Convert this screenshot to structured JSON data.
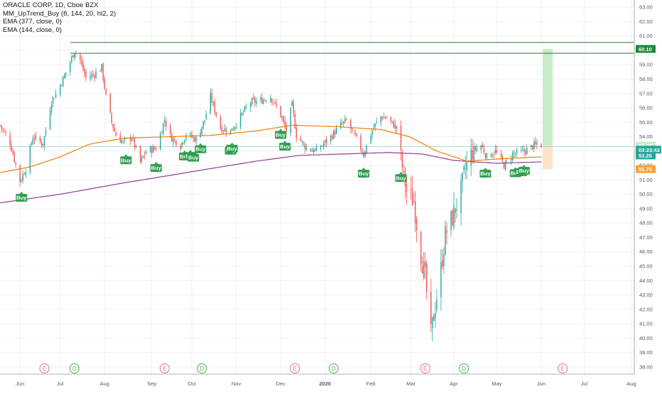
{
  "legend": {
    "symbol": "ORACLE CORP, 1D, Cboe BZX",
    "indicator": "MM_UpTrend_Buy (8, 144, 20, hl2, 2)",
    "ema_slow": "EMA (377, close, 0)",
    "ema_fast": "EMA (144, close, 0)"
  },
  "colors": {
    "up": "#26a69a",
    "down": "#ef5350",
    "ema_fast": "#f57c00",
    "ema_slow": "#8e3f8f",
    "buy": "#2e9e4f",
    "level_line": "#2e7d32",
    "profit_zone": "#c8ebcc",
    "loss_zone": "#fde3c8",
    "tag_green": "#1b8a3a",
    "tag_teal": "#26a69a",
    "tag_orange": "#f9a23b",
    "earnings": "#e57373",
    "dividend": "#4caf50"
  },
  "chart_data": {
    "type": "candlestick",
    "title": "ORACLE CORP, 1D, Cboe BZX",
    "ylim": [
      37.5,
      63.5
    ],
    "y_ticks": [
      "38.00",
      "39.00",
      "40.00",
      "41.00",
      "42.00",
      "43.00",
      "44.00",
      "45.00",
      "46.00",
      "47.00",
      "48.00",
      "49.00",
      "50.00",
      "51.00",
      "52.00",
      "53.00",
      "54.00",
      "55.00",
      "56.00",
      "57.00",
      "58.00",
      "59.00",
      "60.00",
      "61.00",
      "62.00",
      "63.00"
    ],
    "x_range": [
      "2019-05-20",
      "2020-08-05"
    ],
    "x_ticks": [
      {
        "label": "Jun",
        "date": "2019-06-03"
      },
      {
        "label": "Jul",
        "date": "2019-07-01"
      },
      {
        "label": "Aug",
        "date": "2019-08-01"
      },
      {
        "label": "Sep",
        "date": "2019-09-03"
      },
      {
        "label": "Oct",
        "date": "2019-10-01"
      },
      {
        "label": "Nov",
        "date": "2019-11-01"
      },
      {
        "label": "Dec",
        "date": "2019-12-02"
      },
      {
        "label": "2020",
        "date": "2020-01-02"
      },
      {
        "label": "Feb",
        "date": "2020-02-03"
      },
      {
        "label": "Mar",
        "date": "2020-03-02"
      },
      {
        "label": "Apr",
        "date": "2020-04-01"
      },
      {
        "label": "May",
        "date": "2020-05-01"
      },
      {
        "label": "Jun",
        "date": "2020-06-01"
      },
      {
        "label": "Jul",
        "date": "2020-07-01"
      },
      {
        "label": "Aug",
        "date": "2020-08-03"
      }
    ],
    "price_anchors": [
      [
        "2019-05-20",
        54.8
      ],
      [
        "2019-05-27",
        53.6
      ],
      [
        "2019-06-03",
        50.9
      ],
      [
        "2019-06-07",
        51.8
      ],
      [
        "2019-06-12",
        54.0
      ],
      [
        "2019-06-19",
        53.5
      ],
      [
        "2019-06-25",
        56.5
      ],
      [
        "2019-06-28",
        57.0
      ],
      [
        "2019-07-03",
        58.0
      ],
      [
        "2019-07-08",
        59.2
      ],
      [
        "2019-07-11",
        60.0
      ],
      [
        "2019-07-15",
        59.3
      ],
      [
        "2019-07-19",
        58.1
      ],
      [
        "2019-07-24",
        58.3
      ],
      [
        "2019-07-30",
        58.8
      ],
      [
        "2019-08-02",
        56.8
      ],
      [
        "2019-08-06",
        55.0
      ],
      [
        "2019-08-09",
        54.1
      ],
      [
        "2019-08-14",
        53.6
      ],
      [
        "2019-08-20",
        54.0
      ],
      [
        "2019-08-26",
        52.2
      ],
      [
        "2019-08-30",
        53.0
      ],
      [
        "2019-09-06",
        53.2
      ],
      [
        "2019-09-12",
        55.2
      ],
      [
        "2019-09-16",
        54.0
      ],
      [
        "2019-09-23",
        53.4
      ],
      [
        "2019-09-27",
        54.2
      ],
      [
        "2019-10-04",
        53.8
      ],
      [
        "2019-10-10",
        55.2
      ],
      [
        "2019-10-14",
        56.8
      ],
      [
        "2019-10-21",
        54.6
      ],
      [
        "2019-10-28",
        54.4
      ],
      [
        "2019-11-04",
        55.4
      ],
      [
        "2019-11-11",
        56.4
      ],
      [
        "2019-11-18",
        56.5
      ],
      [
        "2019-11-25",
        56.8
      ],
      [
        "2019-12-02",
        55.5
      ],
      [
        "2019-12-06",
        54.4
      ],
      [
        "2019-12-10",
        56.2
      ],
      [
        "2019-12-13",
        54.1
      ],
      [
        "2019-12-20",
        53.2
      ],
      [
        "2019-12-27",
        53.0
      ],
      [
        "2020-01-06",
        54.0
      ],
      [
        "2020-01-13",
        54.8
      ],
      [
        "2020-01-17",
        55.1
      ],
      [
        "2020-01-23",
        54.0
      ],
      [
        "2020-01-29",
        52.8
      ],
      [
        "2020-02-04",
        54.5
      ],
      [
        "2020-02-10",
        55.4
      ],
      [
        "2020-02-14",
        55.3
      ],
      [
        "2020-02-21",
        54.6
      ],
      [
        "2020-02-24",
        52.5
      ],
      [
        "2020-02-28",
        50.2
      ],
      [
        "2020-03-04",
        49.5
      ],
      [
        "2020-03-09",
        45.8
      ],
      [
        "2020-03-12",
        44.2
      ],
      [
        "2020-03-16",
        40.2
      ],
      [
        "2020-03-19",
        42.3
      ],
      [
        "2020-03-23",
        44.8
      ],
      [
        "2020-03-26",
        47.2
      ],
      [
        "2020-03-31",
        48.4
      ],
      [
        "2020-04-06",
        50.2
      ],
      [
        "2020-04-09",
        51.8
      ],
      [
        "2020-04-14",
        53.0
      ],
      [
        "2020-04-20",
        53.4
      ],
      [
        "2020-04-24",
        52.6
      ],
      [
        "2020-04-30",
        53.0
      ],
      [
        "2020-05-06",
        52.0
      ],
      [
        "2020-05-12",
        52.8
      ],
      [
        "2020-05-18",
        52.9
      ],
      [
        "2020-05-22",
        53.1
      ],
      [
        "2020-05-27",
        53.4
      ],
      [
        "2020-06-01",
        53.4
      ]
    ],
    "ema_fast_anchors": [
      [
        "2019-05-20",
        51.5
      ],
      [
        "2019-06-10",
        51.9
      ],
      [
        "2019-07-01",
        52.6
      ],
      [
        "2019-07-22",
        53.5
      ],
      [
        "2019-08-15",
        53.9
      ],
      [
        "2019-09-15",
        54.0
      ],
      [
        "2019-10-15",
        54.1
      ],
      [
        "2019-11-15",
        54.4
      ],
      [
        "2019-12-10",
        54.8
      ],
      [
        "2020-01-10",
        54.7
      ],
      [
        "2020-02-10",
        54.5
      ],
      [
        "2020-03-01",
        54.0
      ],
      [
        "2020-03-20",
        53.0
      ],
      [
        "2020-04-10",
        52.3
      ],
      [
        "2020-05-01",
        52.45
      ],
      [
        "2020-06-01",
        52.6
      ]
    ],
    "ema_slow_anchors": [
      [
        "2019-05-20",
        49.4
      ],
      [
        "2019-07-01",
        50.0
      ],
      [
        "2019-08-15",
        50.8
      ],
      [
        "2019-09-15",
        51.3
      ],
      [
        "2019-10-15",
        51.8
      ],
      [
        "2019-11-15",
        52.3
      ],
      [
        "2019-12-15",
        52.7
      ],
      [
        "2020-01-15",
        52.8
      ],
      [
        "2020-02-15",
        52.9
      ],
      [
        "2020-03-10",
        52.8
      ],
      [
        "2020-04-01",
        52.35
      ],
      [
        "2020-05-01",
        52.15
      ],
      [
        "2020-06-01",
        52.25
      ]
    ],
    "horizontal_lines": [
      {
        "value": 60.55,
        "from": "2019-07-08"
      },
      {
        "value": 59.8,
        "from": "2019-07-08"
      },
      {
        "value": 53.32,
        "from": "2019-05-20"
      }
    ],
    "profit_zone": {
      "from": "2020-06-02",
      "to": "2020-06-09",
      "top": 60.1,
      "bottom": 53.38
    },
    "loss_zone": {
      "from": "2020-06-02",
      "to": "2020-06-09",
      "top": 53.38,
      "bottom": 51.75
    },
    "buy_signals": [
      {
        "date": "2019-06-04",
        "label": "Buy"
      },
      {
        "date": "2019-08-16",
        "label": "Buy"
      },
      {
        "date": "2019-09-06",
        "label": "Buy"
      },
      {
        "date": "2019-09-26",
        "label": "Buy"
      },
      {
        "date": "2019-09-30",
        "label": "Buy"
      },
      {
        "date": "2019-10-02",
        "label": "Buy"
      },
      {
        "date": "2019-10-07",
        "label": "Buy"
      },
      {
        "date": "2019-10-28",
        "label": "Buy"
      },
      {
        "date": "2019-10-29",
        "label": "Buy"
      },
      {
        "date": "2019-12-02",
        "label": "Buy"
      },
      {
        "date": "2019-12-05",
        "label": "Buy"
      },
      {
        "date": "2020-01-29",
        "label": "Buy"
      },
      {
        "date": "2020-02-24",
        "label": "Buy"
      },
      {
        "date": "2020-04-23",
        "label": "Buy"
      },
      {
        "date": "2020-05-14",
        "label": "Buy"
      },
      {
        "date": "2020-05-18",
        "label": "Buy"
      },
      {
        "date": "2020-05-20",
        "label": "Buy"
      }
    ],
    "price_tags": [
      {
        "value": 60.1,
        "label": "60.10",
        "color": "tag_green"
      },
      {
        "value": 53.38,
        "label": "53.38",
        "color": "profit_zone",
        "text_color": "#1b5e20"
      },
      {
        "value": 52.7,
        "label": "53.25",
        "color": "tag_teal"
      },
      {
        "value": 53.1,
        "label": "03:23:42",
        "color": "tag_teal"
      },
      {
        "value": 51.75,
        "label": "51.75",
        "color": "tag_orange"
      }
    ],
    "events": [
      {
        "date": "2019-06-20",
        "type": "E"
      },
      {
        "date": "2019-07-11",
        "type": "D"
      },
      {
        "date": "2019-09-12",
        "type": "E"
      },
      {
        "date": "2019-10-08",
        "type": "D"
      },
      {
        "date": "2019-12-12",
        "type": "E"
      },
      {
        "date": "2020-01-08",
        "type": "D"
      },
      {
        "date": "2020-03-12",
        "type": "E"
      },
      {
        "date": "2020-04-08",
        "type": "D"
      },
      {
        "date": "2020-06-16",
        "type": "E"
      }
    ]
  }
}
